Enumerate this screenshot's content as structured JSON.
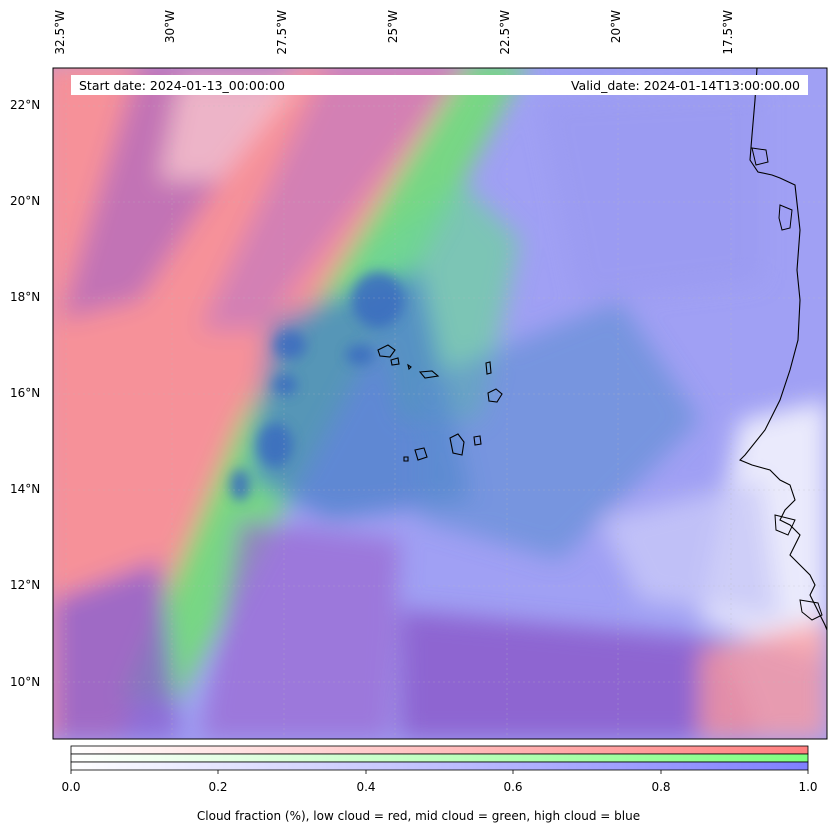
{
  "map": {
    "start_label": "Start date: 2024-01-13_00:00:00",
    "valid_label": "Valid_date: 2024-01-14T13:00:00.00",
    "lon_labels": [
      "32.5°W",
      "30°W",
      "27.5°W",
      "25°W",
      "22.5°W",
      "20°W",
      "17.5°W"
    ],
    "lat_labels": [
      "22°N",
      "20°N",
      "18°N",
      "16°N",
      "14°N",
      "12°N",
      "10°N"
    ],
    "colors": {
      "low": "#ff7f7f",
      "mid": "#7fff7f",
      "high": "#7f7fff",
      "mix_red_blue": "#a070d0",
      "mix_green_blue": "#4a8ab0"
    }
  },
  "colorbar": {
    "ticks": [
      "0.0",
      "0.2",
      "0.4",
      "0.6",
      "0.8",
      "1.0"
    ],
    "caption": "Cloud fraction (%), low cloud = red, mid cloud = green, high cloud = blue"
  }
}
